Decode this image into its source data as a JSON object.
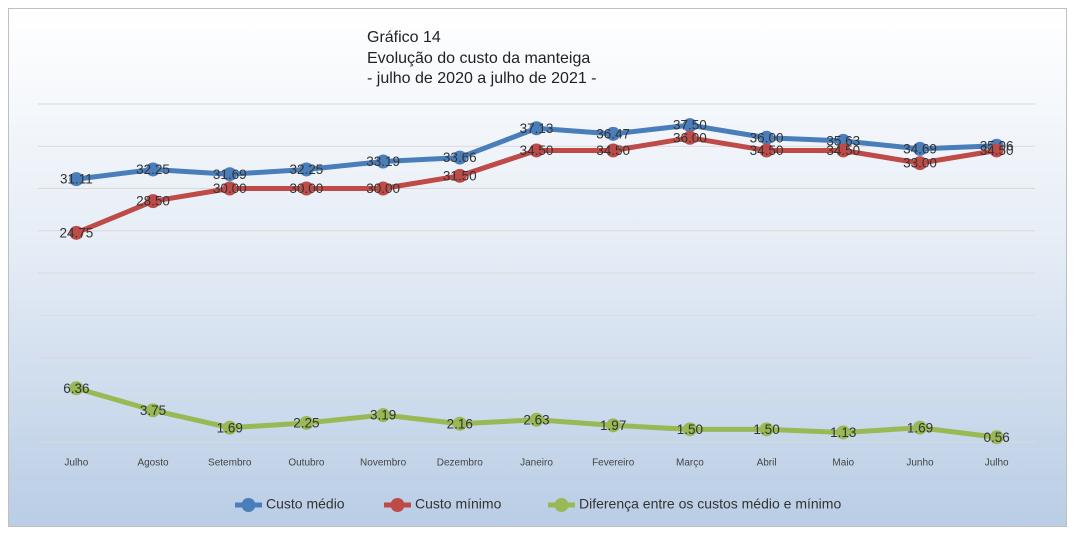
{
  "chart_data": {
    "type": "line",
    "title_lines": [
      "Gráfico 14",
      "Evolução do custo da manteiga",
      "- julho de 2020 a julho de 2021 -"
    ],
    "categories": [
      "Julho",
      "Agosto",
      "Setembro",
      "Outubro",
      "Novembro",
      "Dezembro",
      "Janeiro",
      "Fevereiro",
      "Março",
      "Abril",
      "Maio",
      "Junho",
      "Julho"
    ],
    "series": [
      {
        "name": "Custo médio",
        "color": "#4a7ebb",
        "values": [
          31.11,
          32.25,
          31.69,
          32.25,
          33.19,
          33.66,
          37.13,
          36.47,
          37.5,
          36,
          35.63,
          34.69,
          35.06
        ],
        "value_labels": [
          "31.11",
          "32.25",
          "31.69",
          "32.25",
          "33.19",
          "33.66",
          "37.13",
          "36.47",
          "37.50",
          "36.00",
          "35.63",
          "34.69",
          "35.06"
        ]
      },
      {
        "name": "Custo mínimo",
        "color": "#be4b48",
        "values": [
          24.75,
          28.5,
          30,
          30,
          30,
          31.5,
          34.5,
          34.5,
          36,
          34.5,
          34.5,
          33,
          34.5
        ],
        "value_labels": [
          "24.75",
          "28.50",
          "30.00",
          "30.00",
          "30.00",
          "31.50",
          "34.50",
          "34.50",
          "36.00",
          "34.50",
          "34.50",
          "33.00",
          "34.50"
        ]
      },
      {
        "name": "Diferença entre os custos médio e mínimo",
        "color": "#98b954",
        "values": [
          6.36,
          3.75,
          1.69,
          2.25,
          3.19,
          2.16,
          2.63,
          1.97,
          1.5,
          1.5,
          1.13,
          1.69,
          0.56
        ],
        "value_labels": [
          "6.36",
          "3.75",
          "1.69",
          "2.25",
          "3.19",
          "2.16",
          "2.63",
          "1.97",
          "1.50",
          "1.50",
          "1.13",
          "1.69",
          "0.56"
        ]
      }
    ],
    "ylim": [
      0,
      40
    ],
    "yticks": [
      0,
      5,
      10,
      15,
      20,
      25,
      30,
      35,
      40
    ],
    "grid": true,
    "legend": "bottom"
  }
}
